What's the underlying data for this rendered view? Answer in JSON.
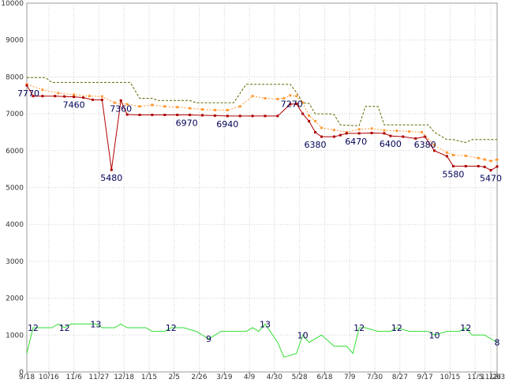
{
  "chart_data": {
    "type": "line",
    "title": "",
    "xlabel": "",
    "ylabel": "",
    "ylim": [
      0,
      10000
    ],
    "xlim": [
      0,
      150
    ],
    "y_ticks": [
      0,
      1000,
      2000,
      3000,
      4000,
      5000,
      6000,
      7000,
      8000,
      9000,
      10000
    ],
    "x_tick_labels": [
      {
        "x": 0,
        "label": "9/18"
      },
      {
        "x": 7,
        "label": "10/16"
      },
      {
        "x": 15,
        "label": "11/6"
      },
      {
        "x": 23,
        "label": "11/27"
      },
      {
        "x": 31,
        "label": "12/18"
      },
      {
        "x": 39,
        "label": "1/15"
      },
      {
        "x": 47,
        "label": "2/5"
      },
      {
        "x": 55,
        "label": "2/26"
      },
      {
        "x": 63,
        "label": "3/19"
      },
      {
        "x": 71,
        "label": "4/9"
      },
      {
        "x": 79,
        "label": "4/30"
      },
      {
        "x": 87,
        "label": "5/28"
      },
      {
        "x": 95,
        "label": "6/18"
      },
      {
        "x": 103,
        "label": "7/9"
      },
      {
        "x": 111,
        "label": "7/30"
      },
      {
        "x": 119,
        "label": "8/27"
      },
      {
        "x": 127,
        "label": "9/17"
      },
      {
        "x": 135,
        "label": "10/15"
      },
      {
        "x": 143,
        "label": "11/5"
      },
      {
        "x": 148,
        "label": "11/26"
      },
      {
        "x": 150,
        "label": "12/3"
      }
    ],
    "grid": true,
    "colors": {
      "price": "#b00000",
      "average": "#ff9933",
      "high": "#666600",
      "count": "#33dd33",
      "label": "#000055"
    },
    "series": [
      {
        "key": "price",
        "style": "solid-markers",
        "points": [
          [
            0,
            7770
          ],
          [
            2,
            7480
          ],
          [
            5,
            7480
          ],
          [
            9,
            7480
          ],
          [
            12,
            7470
          ],
          [
            15,
            7460
          ],
          [
            18,
            7440
          ],
          [
            21,
            7380
          ],
          [
            24,
            7380
          ],
          [
            27,
            5480
          ],
          [
            30,
            7360
          ],
          [
            32,
            6980
          ],
          [
            36,
            6970
          ],
          [
            40,
            6970
          ],
          [
            44,
            6970
          ],
          [
            48,
            6970
          ],
          [
            52,
            6970
          ],
          [
            56,
            6960
          ],
          [
            60,
            6950
          ],
          [
            64,
            6940
          ],
          [
            68,
            6940
          ],
          [
            72,
            6940
          ],
          [
            76,
            6940
          ],
          [
            80,
            6940
          ],
          [
            84,
            7260
          ],
          [
            86,
            7270
          ],
          [
            88,
            7000
          ],
          [
            90,
            6800
          ],
          [
            92,
            6500
          ],
          [
            94,
            6380
          ],
          [
            98,
            6380
          ],
          [
            100,
            6420
          ],
          [
            102,
            6470
          ],
          [
            106,
            6470
          ],
          [
            110,
            6480
          ],
          [
            114,
            6470
          ],
          [
            116,
            6400
          ],
          [
            120,
            6380
          ],
          [
            124,
            6330
          ],
          [
            127,
            6380
          ],
          [
            130,
            6000
          ],
          [
            134,
            5850
          ],
          [
            136,
            5580
          ],
          [
            140,
            5580
          ],
          [
            144,
            5580
          ],
          [
            146,
            5560
          ],
          [
            148,
            5470
          ],
          [
            150,
            5570
          ]
        ]
      },
      {
        "key": "average",
        "style": "dotted-markers",
        "points": [
          [
            0,
            7800
          ],
          [
            5,
            7650
          ],
          [
            10,
            7560
          ],
          [
            15,
            7520
          ],
          [
            20,
            7480
          ],
          [
            24,
            7470
          ],
          [
            28,
            7300
          ],
          [
            32,
            7260
          ],
          [
            36,
            7200
          ],
          [
            40,
            7240
          ],
          [
            44,
            7200
          ],
          [
            48,
            7180
          ],
          [
            52,
            7150
          ],
          [
            56,
            7120
          ],
          [
            60,
            7100
          ],
          [
            64,
            7100
          ],
          [
            68,
            7200
          ],
          [
            72,
            7480
          ],
          [
            76,
            7420
          ],
          [
            80,
            7400
          ],
          [
            82,
            7420
          ],
          [
            84,
            7500
          ],
          [
            86,
            7480
          ],
          [
            88,
            7300
          ],
          [
            90,
            6950
          ],
          [
            92,
            6800
          ],
          [
            94,
            6620
          ],
          [
            98,
            6560
          ],
          [
            102,
            6500
          ],
          [
            106,
            6580
          ],
          [
            110,
            6600
          ],
          [
            114,
            6550
          ],
          [
            118,
            6540
          ],
          [
            122,
            6520
          ],
          [
            126,
            6500
          ],
          [
            130,
            6150
          ],
          [
            134,
            5950
          ],
          [
            136,
            5880
          ],
          [
            140,
            5860
          ],
          [
            144,
            5800
          ],
          [
            146,
            5760
          ],
          [
            148,
            5720
          ],
          [
            150,
            5760
          ]
        ]
      },
      {
        "key": "high",
        "style": "dashed",
        "points": [
          [
            0,
            7980
          ],
          [
            6,
            7980
          ],
          [
            8,
            7850
          ],
          [
            24,
            7850
          ],
          [
            30,
            7850
          ],
          [
            33,
            7850
          ],
          [
            36,
            7420
          ],
          [
            40,
            7420
          ],
          [
            42,
            7360
          ],
          [
            52,
            7360
          ],
          [
            54,
            7300
          ],
          [
            66,
            7300
          ],
          [
            70,
            7800
          ],
          [
            84,
            7800
          ],
          [
            86,
            7580
          ],
          [
            88,
            7300
          ],
          [
            90,
            7280
          ],
          [
            92,
            7000
          ],
          [
            96,
            7000
          ],
          [
            98,
            6980
          ],
          [
            100,
            6700
          ],
          [
            104,
            6680
          ],
          [
            106,
            6680
          ],
          [
            108,
            7200
          ],
          [
            112,
            7200
          ],
          [
            114,
            6700
          ],
          [
            128,
            6700
          ],
          [
            130,
            6500
          ],
          [
            134,
            6300
          ],
          [
            136,
            6300
          ],
          [
            140,
            6220
          ],
          [
            142,
            6300
          ],
          [
            150,
            6300
          ]
        ]
      },
      {
        "key": "count",
        "style": "solid",
        "display_scale": 100,
        "points": [
          [
            0,
            5
          ],
          [
            2,
            12
          ],
          [
            6,
            12
          ],
          [
            8,
            12
          ],
          [
            10,
            13
          ],
          [
            12,
            12
          ],
          [
            14,
            13
          ],
          [
            22,
            13
          ],
          [
            24,
            12
          ],
          [
            28,
            12
          ],
          [
            30,
            13
          ],
          [
            32,
            12
          ],
          [
            38,
            12
          ],
          [
            40,
            11
          ],
          [
            44,
            11
          ],
          [
            46,
            12
          ],
          [
            50,
            12
          ],
          [
            54,
            11
          ],
          [
            58,
            9
          ],
          [
            60,
            10
          ],
          [
            62,
            11
          ],
          [
            66,
            11
          ],
          [
            70,
            11
          ],
          [
            72,
            12
          ],
          [
            74,
            11
          ],
          [
            76,
            13
          ],
          [
            80,
            8
          ],
          [
            82,
            4
          ],
          [
            86,
            5
          ],
          [
            88,
            10
          ],
          [
            90,
            8
          ],
          [
            94,
            10
          ],
          [
            98,
            7
          ],
          [
            102,
            7
          ],
          [
            104,
            5
          ],
          [
            106,
            12
          ],
          [
            108,
            12
          ],
          [
            112,
            11
          ],
          [
            116,
            11
          ],
          [
            118,
            12
          ],
          [
            122,
            11
          ],
          [
            126,
            11
          ],
          [
            128,
            11
          ],
          [
            130,
            10
          ],
          [
            134,
            11
          ],
          [
            138,
            11
          ],
          [
            140,
            12
          ],
          [
            142,
            10
          ],
          [
            146,
            10
          ],
          [
            148,
            9
          ],
          [
            150,
            8
          ]
        ]
      }
    ],
    "annotations": [
      {
        "series": "price",
        "x": 0,
        "y": 7770,
        "text": "7770",
        "pos": "below-left"
      },
      {
        "series": "price",
        "x": 15,
        "y": 7460,
        "text": "7460",
        "pos": "below"
      },
      {
        "series": "price",
        "x": 27,
        "y": 5480,
        "text": "5480",
        "pos": "below"
      },
      {
        "series": "price",
        "x": 30,
        "y": 7360,
        "text": "7360",
        "pos": "below"
      },
      {
        "series": "price",
        "x": 51,
        "y": 6970,
        "text": "6970",
        "pos": "below"
      },
      {
        "series": "price",
        "x": 64,
        "y": 6940,
        "text": "6940",
        "pos": "below"
      },
      {
        "series": "price",
        "x": 86,
        "y": 7270,
        "text": "7270",
        "pos": "above-left"
      },
      {
        "series": "price",
        "x": 92,
        "y": 6380,
        "text": "6380",
        "pos": "below"
      },
      {
        "series": "price",
        "x": 105,
        "y": 6470,
        "text": "6470",
        "pos": "below"
      },
      {
        "series": "price",
        "x": 116,
        "y": 6400,
        "text": "6400",
        "pos": "below"
      },
      {
        "series": "price",
        "x": 127,
        "y": 6380,
        "text": "6380",
        "pos": "below"
      },
      {
        "series": "price",
        "x": 136,
        "y": 5580,
        "text": "5580",
        "pos": "below"
      },
      {
        "series": "price",
        "x": 148,
        "y": 5470,
        "text": "5470",
        "pos": "below"
      },
      {
        "series": "count",
        "x": 2,
        "y": 12,
        "text": "12",
        "pos": "center"
      },
      {
        "series": "count",
        "x": 12,
        "y": 12,
        "text": "12",
        "pos": "center"
      },
      {
        "series": "count",
        "x": 22,
        "y": 13,
        "text": "13",
        "pos": "center"
      },
      {
        "series": "count",
        "x": 46,
        "y": 12,
        "text": "12",
        "pos": "center"
      },
      {
        "series": "count",
        "x": 58,
        "y": 9,
        "text": "9",
        "pos": "center"
      },
      {
        "series": "count",
        "x": 76,
        "y": 13,
        "text": "13",
        "pos": "center"
      },
      {
        "series": "count",
        "x": 88,
        "y": 10,
        "text": "10",
        "pos": "center"
      },
      {
        "series": "count",
        "x": 106,
        "y": 12,
        "text": "12",
        "pos": "center"
      },
      {
        "series": "count",
        "x": 118,
        "y": 12,
        "text": "12",
        "pos": "center"
      },
      {
        "series": "count",
        "x": 130,
        "y": 10,
        "text": "10",
        "pos": "center"
      },
      {
        "series": "count",
        "x": 140,
        "y": 12,
        "text": "12",
        "pos": "center"
      },
      {
        "series": "count",
        "x": 150,
        "y": 8,
        "text": "8",
        "pos": "center"
      }
    ]
  }
}
